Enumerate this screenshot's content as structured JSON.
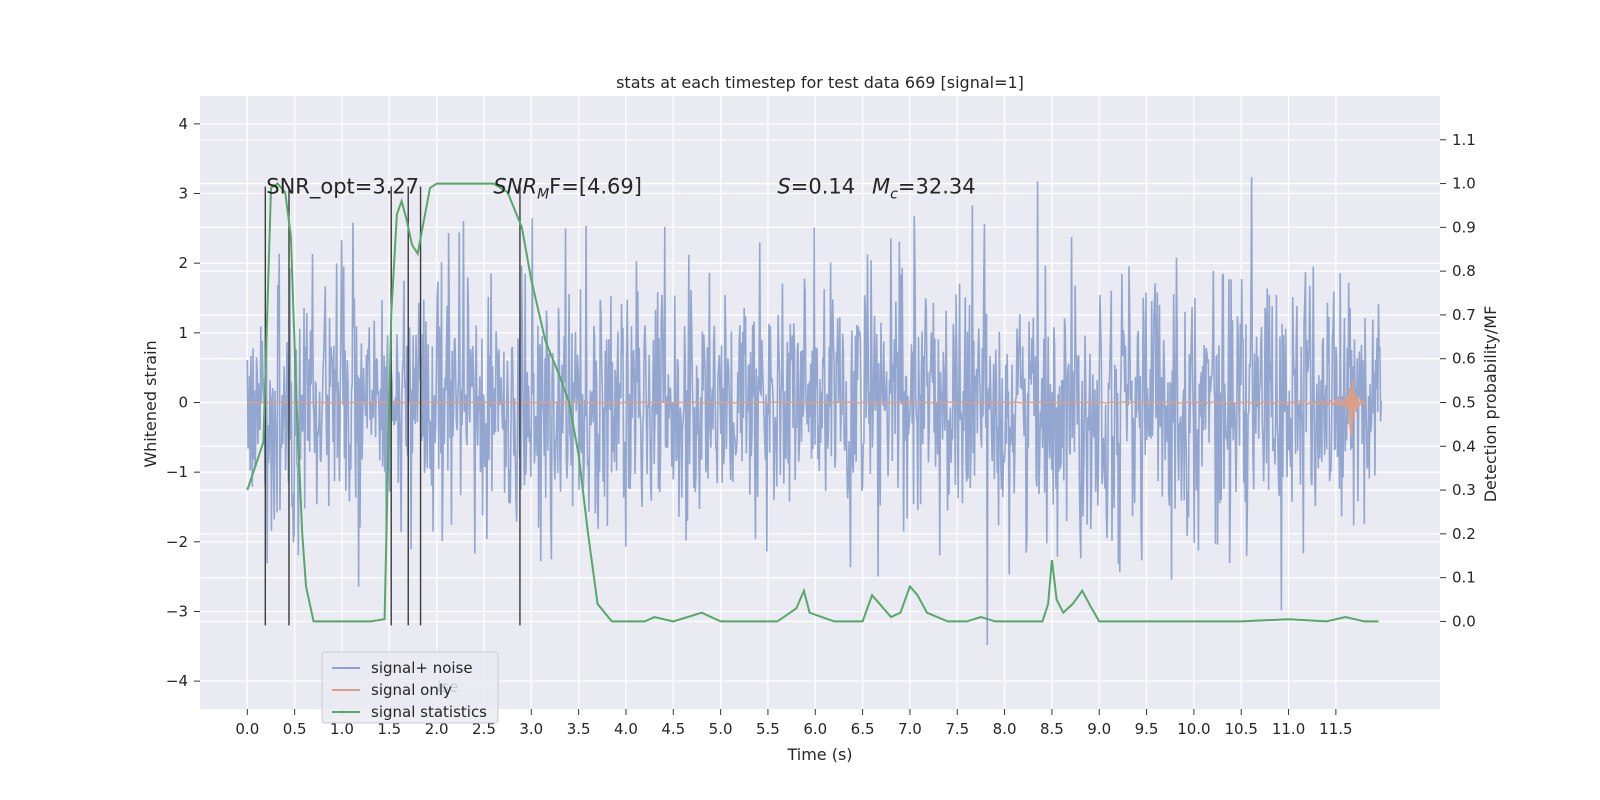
{
  "chart_data": {
    "type": "line",
    "title": "stats at each timestep for test data 669 [signal=1]",
    "xlabel": "Time (s)",
    "ylabel": "Whitened strain",
    "ylabel_right": "Detection probability/MF",
    "xlim": [
      -0.5,
      12.6
    ],
    "ylim_left": [
      -4.4,
      4.4
    ],
    "ylim_right": [
      -0.2,
      1.2
    ],
    "x_ticks": [
      0.0,
      0.5,
      1.0,
      1.5,
      2.0,
      2.5,
      3.0,
      3.5,
      4.0,
      4.5,
      5.0,
      5.5,
      6.0,
      6.5,
      7.0,
      7.5,
      8.0,
      8.5,
      9.0,
      9.5,
      10.0,
      10.5,
      11.0,
      11.5
    ],
    "x_tick_labels": [
      "0.0",
      "0.5",
      "1.0",
      "1.5",
      "2.0",
      "2.5",
      "3.0",
      "3.5",
      "4.0",
      "4.5",
      "5.0",
      "5.5",
      "6.0",
      "6.5",
      "7.0",
      "7.5",
      "8.0",
      "8.5",
      "9.0",
      "9.5",
      "10.0",
      "10.5",
      "11.0",
      "11.5"
    ],
    "y_left_ticks": [
      4,
      3,
      2,
      1,
      0,
      -1,
      -2,
      -3,
      -4
    ],
    "y_left_tick_labels": [
      "4",
      "3",
      "2",
      "1",
      "0",
      "−1",
      "−2",
      "−3",
      "−4"
    ],
    "y_right_ticks": [
      1.1,
      1.0,
      0.9,
      0.8,
      0.7,
      0.6,
      0.5,
      0.4,
      0.3,
      0.2,
      0.1,
      0.0
    ],
    "y_right_tick_labels": [
      "1.1",
      "1.0",
      "0.9",
      "0.8",
      "0.7",
      "0.6",
      "0.5",
      "0.4",
      "0.3",
      "0.2",
      "0.1",
      "0.0"
    ],
    "grid": true,
    "legend_position": "lower-left",
    "series": [
      {
        "name": "signal+ noise",
        "axis": "left",
        "color": "#8ea2cc",
        "x_range": [
          0.0,
          11.98
        ],
        "typical_amplitude": 1.2,
        "peak_amplitude": 3.9
      },
      {
        "name": "signal only",
        "axis": "left",
        "color": "#dd9f85",
        "chirp_peak_time": 11.65,
        "chirp_peak_amplitude": 0.8
      },
      {
        "name": "signal statistics",
        "axis": "right",
        "color": "#55a868",
        "points": [
          [
            0.0,
            0.3
          ],
          [
            0.17,
            0.41
          ],
          [
            0.25,
            0.99
          ],
          [
            0.32,
            1.0
          ],
          [
            0.4,
            0.98
          ],
          [
            0.46,
            0.88
          ],
          [
            0.52,
            0.5
          ],
          [
            0.58,
            0.2
          ],
          [
            0.62,
            0.08
          ],
          [
            0.7,
            0.0
          ],
          [
            1.0,
            0.0
          ],
          [
            1.3,
            0.0
          ],
          [
            1.45,
            0.005
          ],
          [
            1.52,
            0.7
          ],
          [
            1.58,
            0.93
          ],
          [
            1.63,
            0.96
          ],
          [
            1.68,
            0.92
          ],
          [
            1.74,
            0.86
          ],
          [
            1.8,
            0.84
          ],
          [
            1.86,
            0.91
          ],
          [
            1.93,
            0.99
          ],
          [
            2.0,
            1.0
          ],
          [
            2.6,
            1.0
          ],
          [
            2.75,
            0.98
          ],
          [
            2.9,
            0.9
          ],
          [
            3.0,
            0.78
          ],
          [
            3.15,
            0.64
          ],
          [
            3.3,
            0.56
          ],
          [
            3.4,
            0.5
          ],
          [
            3.5,
            0.38
          ],
          [
            3.6,
            0.2
          ],
          [
            3.7,
            0.04
          ],
          [
            3.85,
            0.0
          ],
          [
            4.2,
            0.0
          ],
          [
            4.3,
            0.01
          ],
          [
            4.5,
            0.0
          ],
          [
            4.8,
            0.02
          ],
          [
            5.0,
            0.0
          ],
          [
            5.6,
            0.0
          ],
          [
            5.8,
            0.03
          ],
          [
            5.88,
            0.07
          ],
          [
            5.94,
            0.02
          ],
          [
            6.2,
            0.0
          ],
          [
            6.5,
            0.0
          ],
          [
            6.6,
            0.06
          ],
          [
            6.68,
            0.04
          ],
          [
            6.8,
            0.01
          ],
          [
            6.9,
            0.02
          ],
          [
            7.0,
            0.08
          ],
          [
            7.08,
            0.06
          ],
          [
            7.18,
            0.02
          ],
          [
            7.4,
            0.0
          ],
          [
            7.6,
            0.0
          ],
          [
            7.75,
            0.01
          ],
          [
            7.9,
            0.0
          ],
          [
            8.4,
            0.0
          ],
          [
            8.46,
            0.04
          ],
          [
            8.5,
            0.14
          ],
          [
            8.55,
            0.05
          ],
          [
            8.62,
            0.02
          ],
          [
            8.72,
            0.04
          ],
          [
            8.82,
            0.07
          ],
          [
            8.92,
            0.03
          ],
          [
            9.0,
            0.0
          ],
          [
            10.5,
            0.0
          ],
          [
            11.0,
            0.005
          ],
          [
            11.4,
            0.0
          ],
          [
            11.6,
            0.01
          ],
          [
            11.8,
            0.0
          ],
          [
            11.95,
            0.0
          ]
        ]
      }
    ],
    "vertical_markers": {
      "color": "#3c3c3c",
      "x": [
        0.19,
        0.44,
        1.52,
        1.7,
        1.83,
        2.88
      ],
      "y_top": 3.1,
      "y_bottom": -3.2
    },
    "annotations": [
      {
        "text": "SNR_opt=3.27",
        "x": 0.2,
        "y": 3.1,
        "italic": false
      },
      {
        "text": "SNR",
        "sub": "M",
        "tail": "F=[4.69]",
        "x": 2.6,
        "y": 3.1,
        "italic": true
      },
      {
        "text": "S=0.14",
        "x": 5.6,
        "y": 3.1,
        "italic_prefix": "S"
      },
      {
        "text": "M",
        "sub": "c",
        "tail": "=32.34",
        "x": 6.6,
        "y": 3.1,
        "italic": true
      }
    ],
    "legend_partial_overlap_text": "ise"
  }
}
